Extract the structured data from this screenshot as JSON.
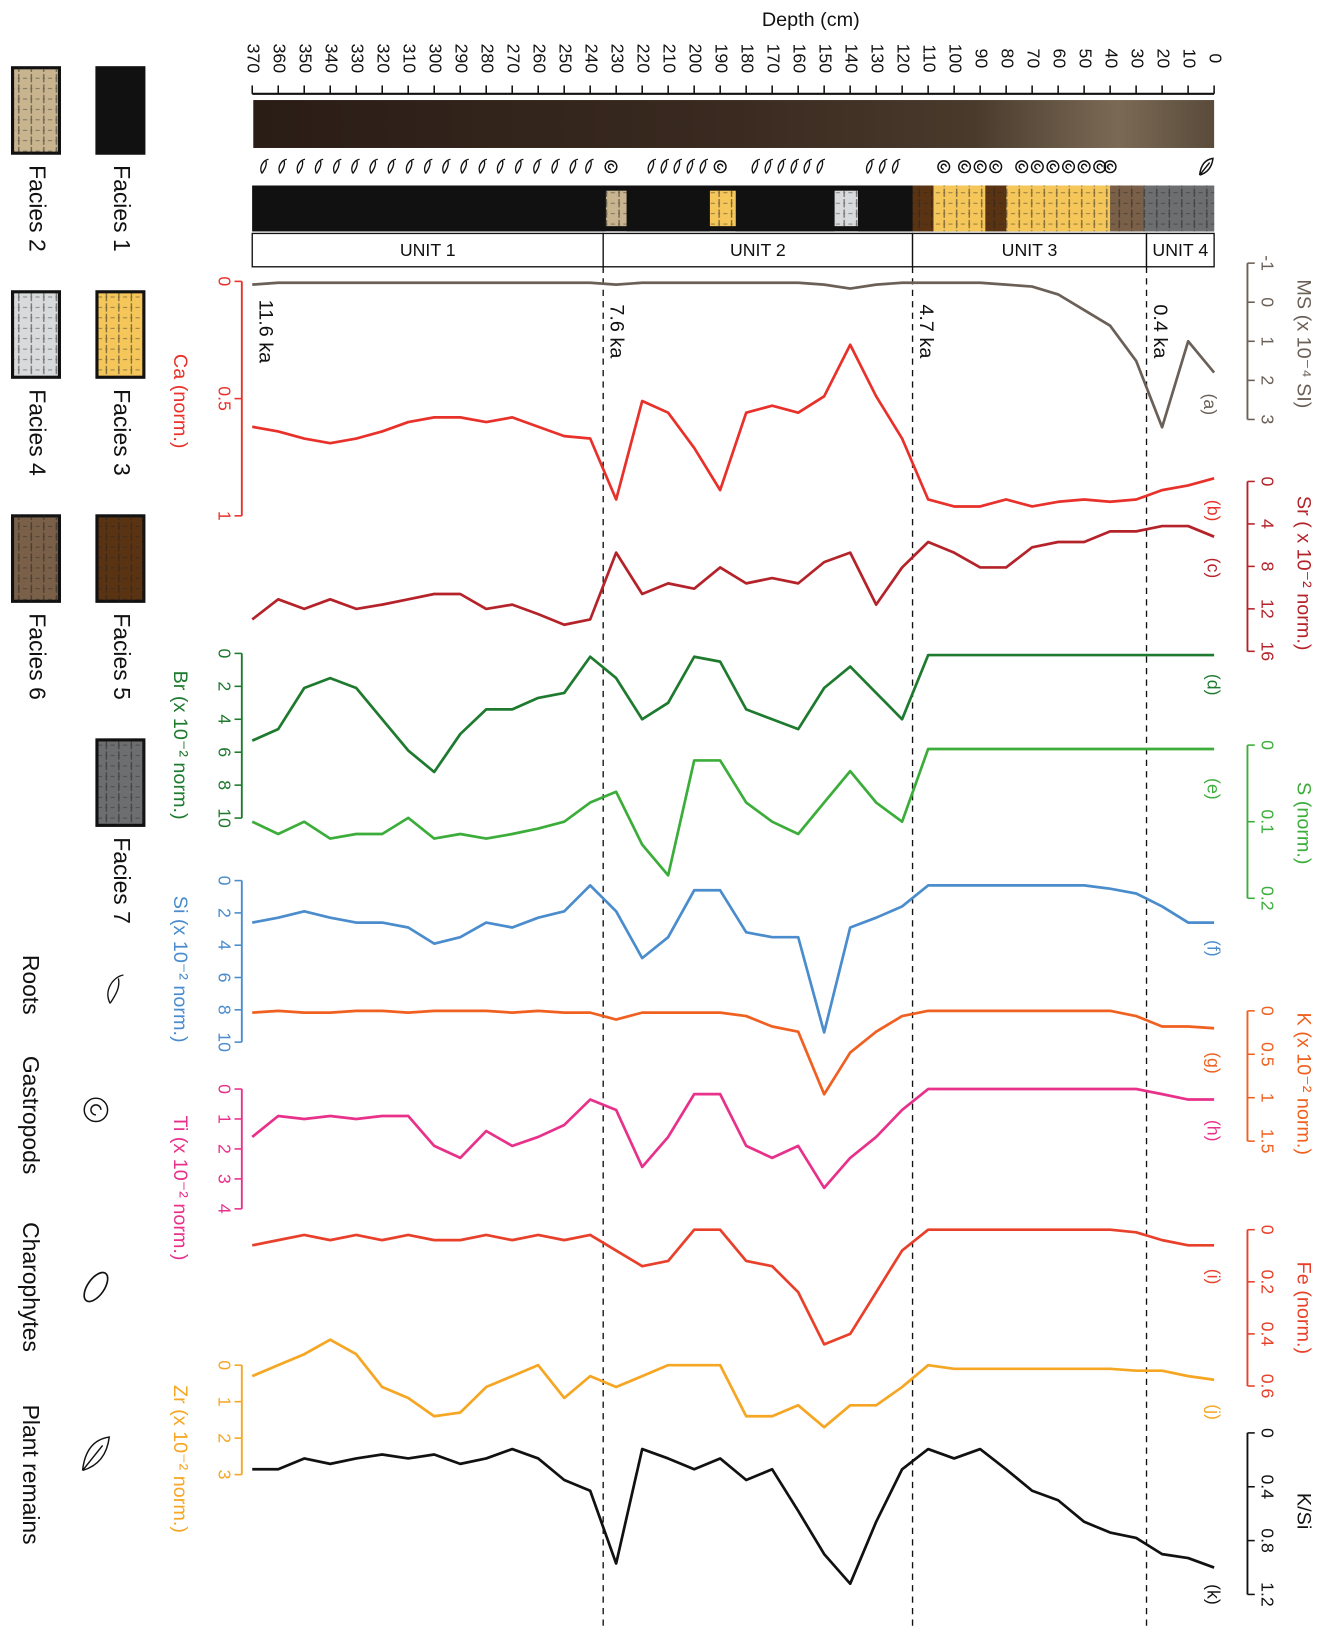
{
  "chart_data": {
    "type": "line",
    "xlabel": "Depth (cm)",
    "xlim": [
      0,
      370
    ],
    "xticks": [
      0,
      10,
      20,
      30,
      40,
      50,
      60,
      70,
      80,
      90,
      100,
      110,
      120,
      130,
      140,
      150,
      160,
      170,
      180,
      190,
      200,
      210,
      220,
      230,
      240,
      250,
      260,
      270,
      280,
      290,
      300,
      310,
      320,
      330,
      340,
      350,
      360,
      370
    ],
    "x": [
      0,
      10,
      20,
      30,
      40,
      50,
      60,
      70,
      80,
      90,
      100,
      110,
      120,
      130,
      140,
      150,
      160,
      170,
      180,
      190,
      200,
      210,
      220,
      230,
      240,
      250,
      260,
      270,
      280,
      290,
      300,
      310,
      320,
      330,
      340,
      350,
      360,
      370
    ],
    "series": [
      {
        "name": "(a)",
        "label": "MS (x 10⁻⁴ SI)",
        "color": "#6b6058",
        "ylim": [
          -1,
          3
        ],
        "yticks": [
          -1,
          0,
          1,
          2,
          3
        ],
        "values": [
          1.8,
          1.0,
          3.2,
          1.5,
          0.6,
          0.2,
          -0.2,
          -0.4,
          -0.45,
          -0.5,
          -0.5,
          -0.5,
          -0.5,
          -0.45,
          -0.35,
          -0.45,
          -0.5,
          -0.5,
          -0.5,
          -0.5,
          -0.5,
          -0.5,
          -0.5,
          -0.45,
          -0.5,
          -0.5,
          -0.5,
          -0.5,
          -0.5,
          -0.5,
          -0.5,
          -0.5,
          -0.5,
          -0.5,
          -0.5,
          -0.5,
          -0.5,
          -0.45
        ]
      },
      {
        "name": "(b)",
        "label": "Ca (norm.)",
        "color": "#e8312a",
        "ylim": [
          0,
          1
        ],
        "yticks": [
          0,
          0.5,
          1
        ],
        "values": [
          0.84,
          0.87,
          0.89,
          0.93,
          0.94,
          0.93,
          0.94,
          0.96,
          0.93,
          0.96,
          0.96,
          0.93,
          0.67,
          0.49,
          0.27,
          0.49,
          0.56,
          0.53,
          0.56,
          0.89,
          0.71,
          0.56,
          0.51,
          0.93,
          0.67,
          0.66,
          0.62,
          0.58,
          0.6,
          0.58,
          0.58,
          0.6,
          0.64,
          0.67,
          0.69,
          0.67,
          0.64,
          0.62
        ]
      },
      {
        "name": "(c)",
        "label": "Sr ( x 10⁻² norm.)",
        "color": "#b5232a",
        "ylim": [
          0,
          16
        ],
        "yticks": [
          0,
          4,
          8,
          12,
          16
        ],
        "values": [
          5.2,
          4.2,
          4.2,
          4.7,
          4.7,
          5.7,
          5.7,
          6.2,
          8.1,
          8.1,
          6.7,
          5.7,
          8.1,
          11.6,
          6.7,
          7.6,
          9.6,
          9.1,
          9.6,
          8.1,
          10.1,
          9.6,
          10.6,
          6.7,
          13,
          13.5,
          12.5,
          11.6,
          12,
          10.6,
          10.6,
          11.1,
          11.6,
          12,
          11.1,
          12,
          11.1,
          13
        ]
      },
      {
        "name": "(d)",
        "label": "Br (x 10⁻² norm.)",
        "color": "#1e7a2e",
        "ylim": [
          0,
          10
        ],
        "yticks": [
          0,
          2,
          4,
          6,
          8,
          10
        ],
        "values": [
          0.1,
          0.1,
          0.1,
          0.1,
          0.1,
          0.1,
          0.1,
          0.1,
          0.1,
          0.1,
          0.1,
          0.1,
          4.0,
          2.4,
          0.8,
          2.1,
          4.6,
          4.0,
          3.4,
          0.5,
          0.2,
          3.0,
          4.0,
          1.5,
          0.2,
          2.4,
          2.7,
          3.4,
          3.4,
          4.9,
          7.2,
          5.9,
          4.0,
          2.1,
          1.5,
          2.1,
          4.6,
          5.3
        ]
      },
      {
        "name": "(e)",
        "label": "S (norm.)",
        "color": "#3cad3a",
        "ylim": [
          0,
          0.2
        ],
        "yticks": [
          0,
          0.1,
          0.2
        ],
        "values": [
          0.005,
          0.005,
          0.005,
          0.005,
          0.005,
          0.005,
          0.005,
          0.005,
          0.005,
          0.005,
          0.005,
          0.005,
          0.1,
          0.075,
          0.034,
          0.075,
          0.116,
          0.1,
          0.075,
          0.02,
          0.02,
          0.17,
          0.13,
          0.061,
          0.075,
          0.1,
          0.109,
          0.116,
          0.122,
          0.116,
          0.122,
          0.095,
          0.116,
          0.116,
          0.122,
          0.1,
          0.116,
          0.1
        ]
      },
      {
        "name": "(f)",
        "label": "Si (x 10⁻² norm.)",
        "color": "#4a8ccc",
        "ylim": [
          0,
          10
        ],
        "yticks": [
          0,
          2,
          4,
          6,
          8,
          10
        ],
        "values": [
          2.6,
          2.6,
          1.6,
          0.8,
          0.5,
          0.3,
          0.3,
          0.3,
          0.3,
          0.3,
          0.3,
          0.3,
          1.6,
          2.3,
          2.9,
          9.4,
          3.5,
          3.5,
          3.2,
          0.6,
          0.6,
          3.5,
          4.8,
          1.9,
          0.3,
          1.9,
          2.3,
          2.9,
          2.6,
          3.5,
          3.9,
          2.9,
          2.6,
          2.6,
          2.3,
          1.9,
          2.3,
          2.6
        ]
      },
      {
        "name": "(g)",
        "label": "K (x 10⁻² norm.)",
        "color": "#f06020",
        "ylim": [
          0,
          1.5
        ],
        "yticks": [
          0,
          0.5,
          1,
          1.5
        ],
        "values": [
          0.2,
          0.18,
          0.18,
          0.06,
          0,
          0,
          0,
          0,
          0,
          0,
          0,
          0,
          0.06,
          0.24,
          0.48,
          0.96,
          0.24,
          0.18,
          0.06,
          0.02,
          0.02,
          0.02,
          0.02,
          0.1,
          0.02,
          0.02,
          0,
          0.02,
          0,
          0,
          0,
          0.02,
          0,
          0,
          0.02,
          0.02,
          0,
          0.02
        ]
      },
      {
        "name": "(h)",
        "label": "Ti (x 10⁻² norm.)",
        "color": "#e8318a",
        "ylim": [
          0,
          4
        ],
        "yticks": [
          0,
          1,
          2,
          3,
          4
        ],
        "values": [
          0.35,
          0.35,
          0.17,
          0,
          0,
          0,
          0,
          0,
          0,
          0,
          0,
          0,
          0.7,
          1.6,
          2.3,
          3.3,
          1.9,
          2.3,
          1.9,
          0.17,
          0.17,
          1.6,
          2.6,
          0.7,
          0.35,
          1.2,
          1.6,
          1.9,
          1.4,
          2.3,
          1.9,
          0.9,
          0.9,
          1.0,
          0.9,
          1.0,
          0.9,
          1.6
        ]
      },
      {
        "name": "(i)",
        "label": "Fe (norm.)",
        "color": "#e8402a",
        "ylim": [
          0,
          0.6
        ],
        "yticks": [
          0,
          0.2,
          0.4,
          0.6
        ],
        "values": [
          0.06,
          0.06,
          0.04,
          0.01,
          0,
          0,
          0,
          0,
          0,
          0,
          0,
          0,
          0.08,
          0.24,
          0.4,
          0.44,
          0.24,
          0.14,
          0.12,
          0,
          0,
          0.12,
          0.14,
          0.08,
          0.02,
          0.04,
          0.02,
          0.04,
          0.02,
          0.04,
          0.04,
          0.02,
          0.04,
          0.02,
          0.04,
          0.02,
          0.04,
          0.06
        ]
      },
      {
        "name": "(j)",
        "label": "Zr (x 10⁻² norm.)",
        "color": "#f5a623",
        "ylim": [
          0,
          3
        ],
        "yticks": [
          0,
          1,
          2,
          3
        ],
        "values": [
          0.4,
          0.3,
          0.15,
          0.15,
          0.1,
          0.1,
          0.1,
          0.1,
          0.1,
          0.1,
          0.1,
          0,
          0.6,
          1.1,
          1.1,
          1.7,
          1.1,
          1.4,
          1.4,
          0,
          0,
          0,
          0.3,
          0.6,
          0.3,
          0.9,
          0,
          0.3,
          0.6,
          1.3,
          1.4,
          0.9,
          0.6,
          -0.3,
          -0.7,
          -0.3,
          0,
          0.3
        ]
      },
      {
        "name": "(k)",
        "label": "K/Si",
        "color": "#111111",
        "ylim": [
          0,
          1.2
        ],
        "yticks": [
          0,
          0.4,
          0.8,
          1.2
        ],
        "values": [
          1.0,
          0.93,
          0.9,
          0.78,
          0.74,
          0.66,
          0.5,
          0.43,
          0.27,
          0.12,
          0.19,
          0.12,
          0.27,
          0.66,
          1.12,
          0.9,
          0.58,
          0.27,
          0.35,
          0.19,
          0.27,
          0.19,
          0.12,
          0.97,
          0.43,
          0.35,
          0.19,
          0.12,
          0.19,
          0.23,
          0.16,
          0.19,
          0.16,
          0.19,
          0.23,
          0.19,
          0.27,
          0.27
        ]
      }
    ],
    "age_markers": [
      {
        "label": "11.6 ka",
        "depth": 370,
        "line": false
      },
      {
        "label": "7.6 ka",
        "depth": 235,
        "line": true
      },
      {
        "label": "4.7 ka",
        "depth": 116,
        "line": true
      },
      {
        "label": "0.4 ka",
        "depth": 26,
        "line": true
      }
    ],
    "units": [
      {
        "label": "UNIT 1",
        "top": 235,
        "bottom": 370
      },
      {
        "label": "UNIT 2",
        "top": 116,
        "bottom": 235
      },
      {
        "label": "UNIT 3",
        "top": 26,
        "bottom": 116
      },
      {
        "label": "UNIT 4",
        "top": 0,
        "bottom": 26
      }
    ],
    "facies": [
      {
        "name": "Facies 1",
        "color": "#111111"
      },
      {
        "name": "Facies 2",
        "color": "#c8b48e"
      },
      {
        "name": "Facies 3",
        "color": "#f5c65a"
      },
      {
        "name": "Facies 4",
        "color": "#d8dadb"
      },
      {
        "name": "Facies 5",
        "color": "#5a3313"
      },
      {
        "name": "Facies 6",
        "color": "#7a6048"
      },
      {
        "name": "Facies 7",
        "color": "#6d6e70"
      }
    ],
    "facies_intervals": [
      {
        "facies": 7,
        "top": 0,
        "bottom": 27
      },
      {
        "facies": 6,
        "top": 27,
        "bottom": 40
      },
      {
        "facies": 3,
        "top": 40,
        "bottom": 80
      },
      {
        "facies": 5,
        "top": 80,
        "bottom": 88
      },
      {
        "facies": 3,
        "top": 88,
        "bottom": 108
      },
      {
        "facies": 5,
        "top": 108,
        "bottom": 116
      },
      {
        "facies": 1,
        "top": 116,
        "bottom": 137
      },
      {
        "facies": 4,
        "top": 137,
        "bottom": 146
      },
      {
        "facies": 1,
        "top": 146,
        "bottom": 184
      },
      {
        "facies": 3,
        "top": 184,
        "bottom": 194
      },
      {
        "facies": 1,
        "top": 194,
        "bottom": 226
      },
      {
        "facies": 2,
        "top": 226,
        "bottom": 234
      },
      {
        "facies": 1,
        "top": 234,
        "bottom": 370
      }
    ],
    "symbols": [
      {
        "name": "Roots",
        "depths": [
          365,
          358,
          351,
          344,
          337,
          330,
          323,
          316,
          309,
          302,
          295,
          288,
          281,
          274,
          267,
          260,
          253,
          246,
          240,
          216,
          211,
          206,
          201,
          196,
          176,
          171,
          166,
          161,
          156,
          151,
          132,
          127,
          122
        ]
      },
      {
        "name": "Gastropods",
        "depths": [
          232,
          190,
          104,
          96,
          90,
          84,
          74,
          68,
          62,
          56,
          50,
          44,
          40
        ]
      },
      {
        "name": "Charophytes"
      },
      {
        "name": "Plant remains",
        "depths": [
          3
        ]
      }
    ]
  }
}
